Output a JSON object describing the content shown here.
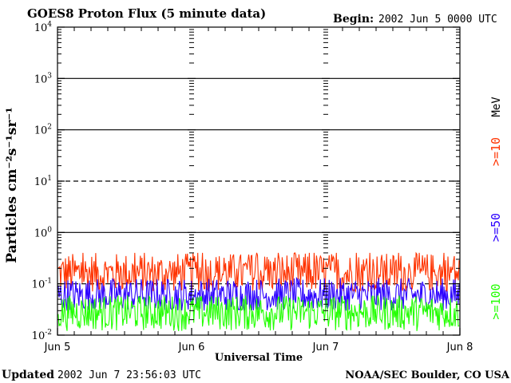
{
  "chart_data": {
    "type": "line",
    "title": "GOES8 Proton Flux (5 minute data)",
    "begin_label": "Begin:",
    "begin_value": "2002 Jun 5 0000 UTC",
    "xlabel": "Universal Time",
    "ylabel": "Particles cm⁻²s⁻¹sr⁻¹",
    "y_scale": "log",
    "ylim": [
      0.01,
      10000
    ],
    "y_ticks": [
      {
        "base": "10",
        "exp": "-2",
        "value": 0.01
      },
      {
        "base": "10",
        "exp": "-1",
        "value": 0.1
      },
      {
        "base": "10",
        "exp": "0",
        "value": 1
      },
      {
        "base": "10",
        "exp": "1",
        "value": 10
      },
      {
        "base": "10",
        "exp": "2",
        "value": 100
      },
      {
        "base": "10",
        "exp": "3",
        "value": 1000
      },
      {
        "base": "10",
        "exp": "4",
        "value": 10000
      }
    ],
    "x_ticks": [
      "Jun 5",
      "Jun 6",
      "Jun 7",
      "Jun 8"
    ],
    "xlim": [
      "2002-06-05 00:00",
      "2002-06-08 00:00"
    ],
    "threshold_lines": [
      1000,
      100,
      1
    ],
    "dashed_lines": [
      10,
      0.1
    ],
    "units_label": "MeV",
    "series": [
      {
        "name": ">=10",
        "color": "#ff3300",
        "typical_range": [
          0.07,
          0.4
        ]
      },
      {
        "name": ">=50",
        "color": "#2b00ff",
        "typical_range": [
          0.03,
          0.13
        ]
      },
      {
        "name": ">=100",
        "color": "#22ff00",
        "typical_range": [
          0.012,
          0.06
        ]
      }
    ]
  },
  "footer": {
    "updated_label": "Updated",
    "updated_value": "2002 Jun  7 23:56:03 UTC",
    "source": "NOAA/SEC Boulder, CO USA"
  }
}
